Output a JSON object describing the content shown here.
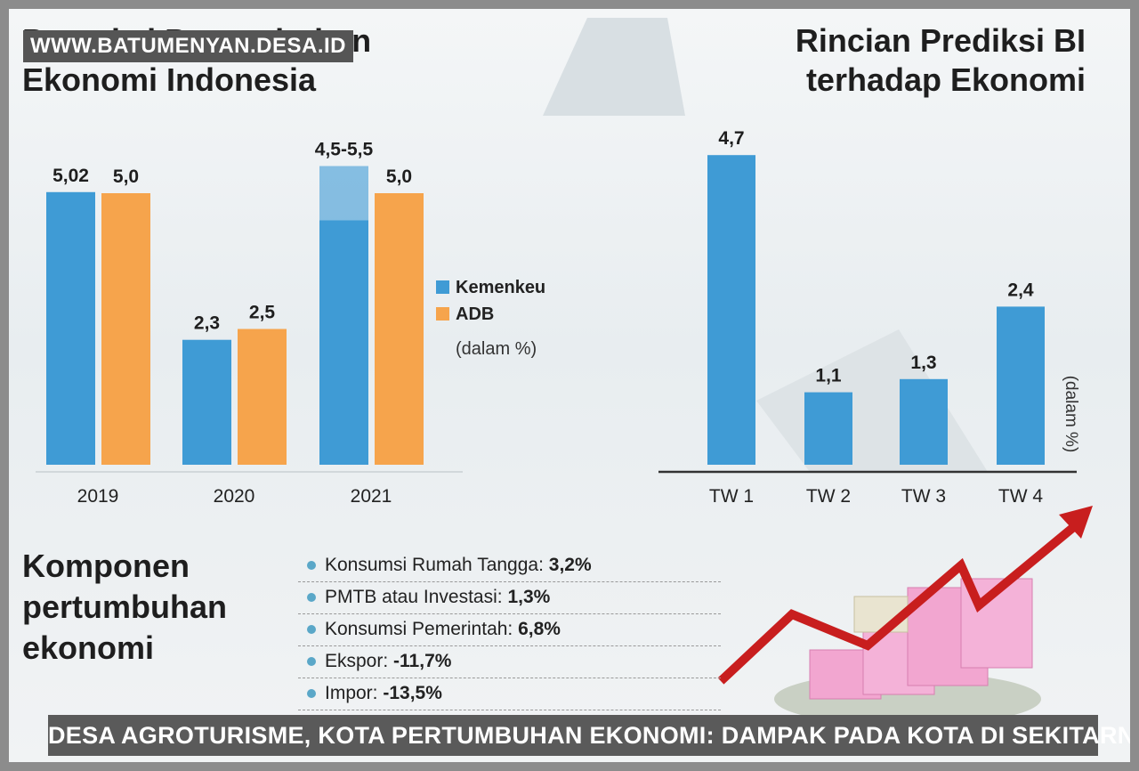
{
  "chart_data": [
    {
      "type": "bar",
      "title": "Proyeksi Pertumbuhan Ekonomi Indonesia",
      "categories": [
        "2019",
        "2020",
        "2021"
      ],
      "series": [
        {
          "name": "Kemenkeu",
          "color": "#3f9bd5",
          "values": [
            5.02,
            2.3,
            5.5
          ],
          "value_labels": [
            "5,02",
            "2,3",
            "4,5-5,5"
          ],
          "range_low": [
            null,
            null,
            4.5
          ]
        },
        {
          "name": "ADB",
          "color": "#f6a44c",
          "values": [
            5.0,
            2.5,
            5.0
          ],
          "value_labels": [
            "5,0",
            "2,5",
            "5,0"
          ]
        }
      ],
      "unit_note": "(dalam %)"
    },
    {
      "type": "bar",
      "title": "Rincian Prediksi BI terhadap Ekonomi",
      "categories": [
        "TW 1",
        "TW 2",
        "TW 3",
        "TW 4"
      ],
      "series": [
        {
          "color": "#3f9bd5",
          "values": [
            4.7,
            1.1,
            1.3,
            2.4
          ],
          "value_labels": [
            "4,7",
            "1,1",
            "1,3",
            "2,4"
          ]
        }
      ],
      "y_label": "(dalam %)"
    }
  ],
  "components": {
    "title": "Komponen pertumbuhan ekonomi",
    "items": [
      {
        "label": "Konsumsi Rumah Tangga:",
        "value": "3,2%"
      },
      {
        "label": "PMTB atau Investasi:",
        "value": "1,3%"
      },
      {
        "label": "Konsumsi Pemerintah:",
        "value": "6,8%"
      },
      {
        "label": "Ekspor:",
        "value": "-11,7%"
      },
      {
        "label": "Impor:",
        "value": "-13,5%"
      }
    ]
  },
  "watermark": "WWW.BATUMENYAN.DESA.ID",
  "caption": "DESA AGROTURISME, KOTA PERTUMBUHAN EKONOMI: DAMPAK PADA KOTA DI SEKITARNYA"
}
